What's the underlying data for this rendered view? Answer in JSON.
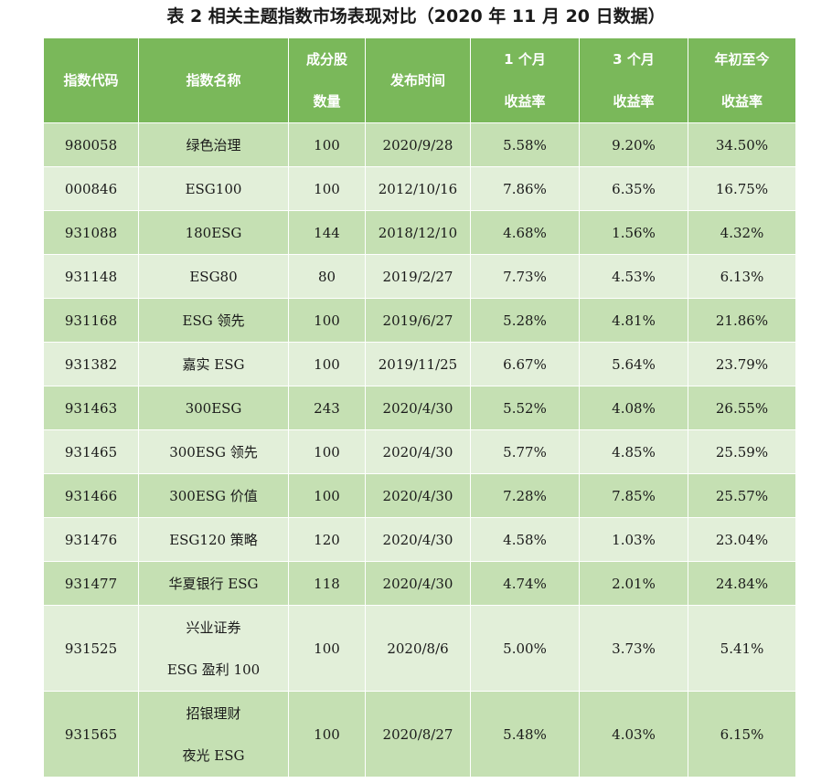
{
  "title": "表 2  相关主题指数市场表现对比（2020 年 11 月 20 日数据）",
  "headers": [
    {
      "line1": "指数代码",
      "line2": ""
    },
    {
      "line1": "指数名称",
      "line2": ""
    },
    {
      "line1": "成分股",
      "line2": "数量"
    },
    {
      "line1": "发布时间",
      "line2": ""
    },
    {
      "line1": "1 个月",
      "line2": "收益率"
    },
    {
      "line1": "3 个月",
      "line2": "收益率"
    },
    {
      "line1": "年初至今",
      "line2": "收益率"
    }
  ],
  "rows": [
    {
      "code": "980058",
      "name": "绿色治理",
      "name2": "",
      "count": "100",
      "date": "2020/9/28",
      "r1m": "5.58%",
      "r3m": "9.20%",
      "ytd": "34.50%"
    },
    {
      "code": "000846",
      "name": "ESG100",
      "name2": "",
      "count": "100",
      "date": "2012/10/16",
      "r1m": "7.86%",
      "r3m": "6.35%",
      "ytd": "16.75%"
    },
    {
      "code": "931088",
      "name": "180ESG",
      "name2": "",
      "count": "144",
      "date": "2018/12/10",
      "r1m": "4.68%",
      "r3m": "1.56%",
      "ytd": "4.32%"
    },
    {
      "code": "931148",
      "name": "ESG80",
      "name2": "",
      "count": "80",
      "date": "2019/2/27",
      "r1m": "7.73%",
      "r3m": "4.53%",
      "ytd": "6.13%"
    },
    {
      "code": "931168",
      "name": "ESG 领先",
      "name2": "",
      "count": "100",
      "date": "2019/6/27",
      "r1m": "5.28%",
      "r3m": "4.81%",
      "ytd": "21.86%"
    },
    {
      "code": "931382",
      "name": "嘉实 ESG",
      "name2": "",
      "count": "100",
      "date": "2019/11/25",
      "r1m": "6.67%",
      "r3m": "5.64%",
      "ytd": "23.79%"
    },
    {
      "code": "931463",
      "name": "300ESG",
      "name2": "",
      "count": "243",
      "date": "2020/4/30",
      "r1m": "5.52%",
      "r3m": "4.08%",
      "ytd": "26.55%"
    },
    {
      "code": "931465",
      "name": "300ESG 领先",
      "name2": "",
      "count": "100",
      "date": "2020/4/30",
      "r1m": "5.77%",
      "r3m": "4.85%",
      "ytd": "25.59%"
    },
    {
      "code": "931466",
      "name": "300ESG 价值",
      "name2": "",
      "count": "100",
      "date": "2020/4/30",
      "r1m": "7.28%",
      "r3m": "7.85%",
      "ytd": "25.57%"
    },
    {
      "code": "931476",
      "name": "ESG120 策略",
      "name2": "",
      "count": "120",
      "date": "2020/4/30",
      "r1m": "4.58%",
      "r3m": "1.03%",
      "ytd": "23.04%"
    },
    {
      "code": "931477",
      "name": "华夏银行 ESG",
      "name2": "",
      "count": "118",
      "date": "2020/4/30",
      "r1m": "4.74%",
      "r3m": "2.01%",
      "ytd": "24.84%"
    },
    {
      "code": "931525",
      "name": "兴业证券",
      "name2": "ESG 盈利 100",
      "count": "100",
      "date": "2020/8/6",
      "r1m": "5.00%",
      "r3m": "3.73%",
      "ytd": "5.41%"
    },
    {
      "code": "931565",
      "name": "招银理财",
      "name2": "夜光 ESG",
      "count": "100",
      "date": "2020/8/27",
      "r1m": "5.48%",
      "r3m": "4.03%",
      "ytd": "6.15%"
    }
  ]
}
